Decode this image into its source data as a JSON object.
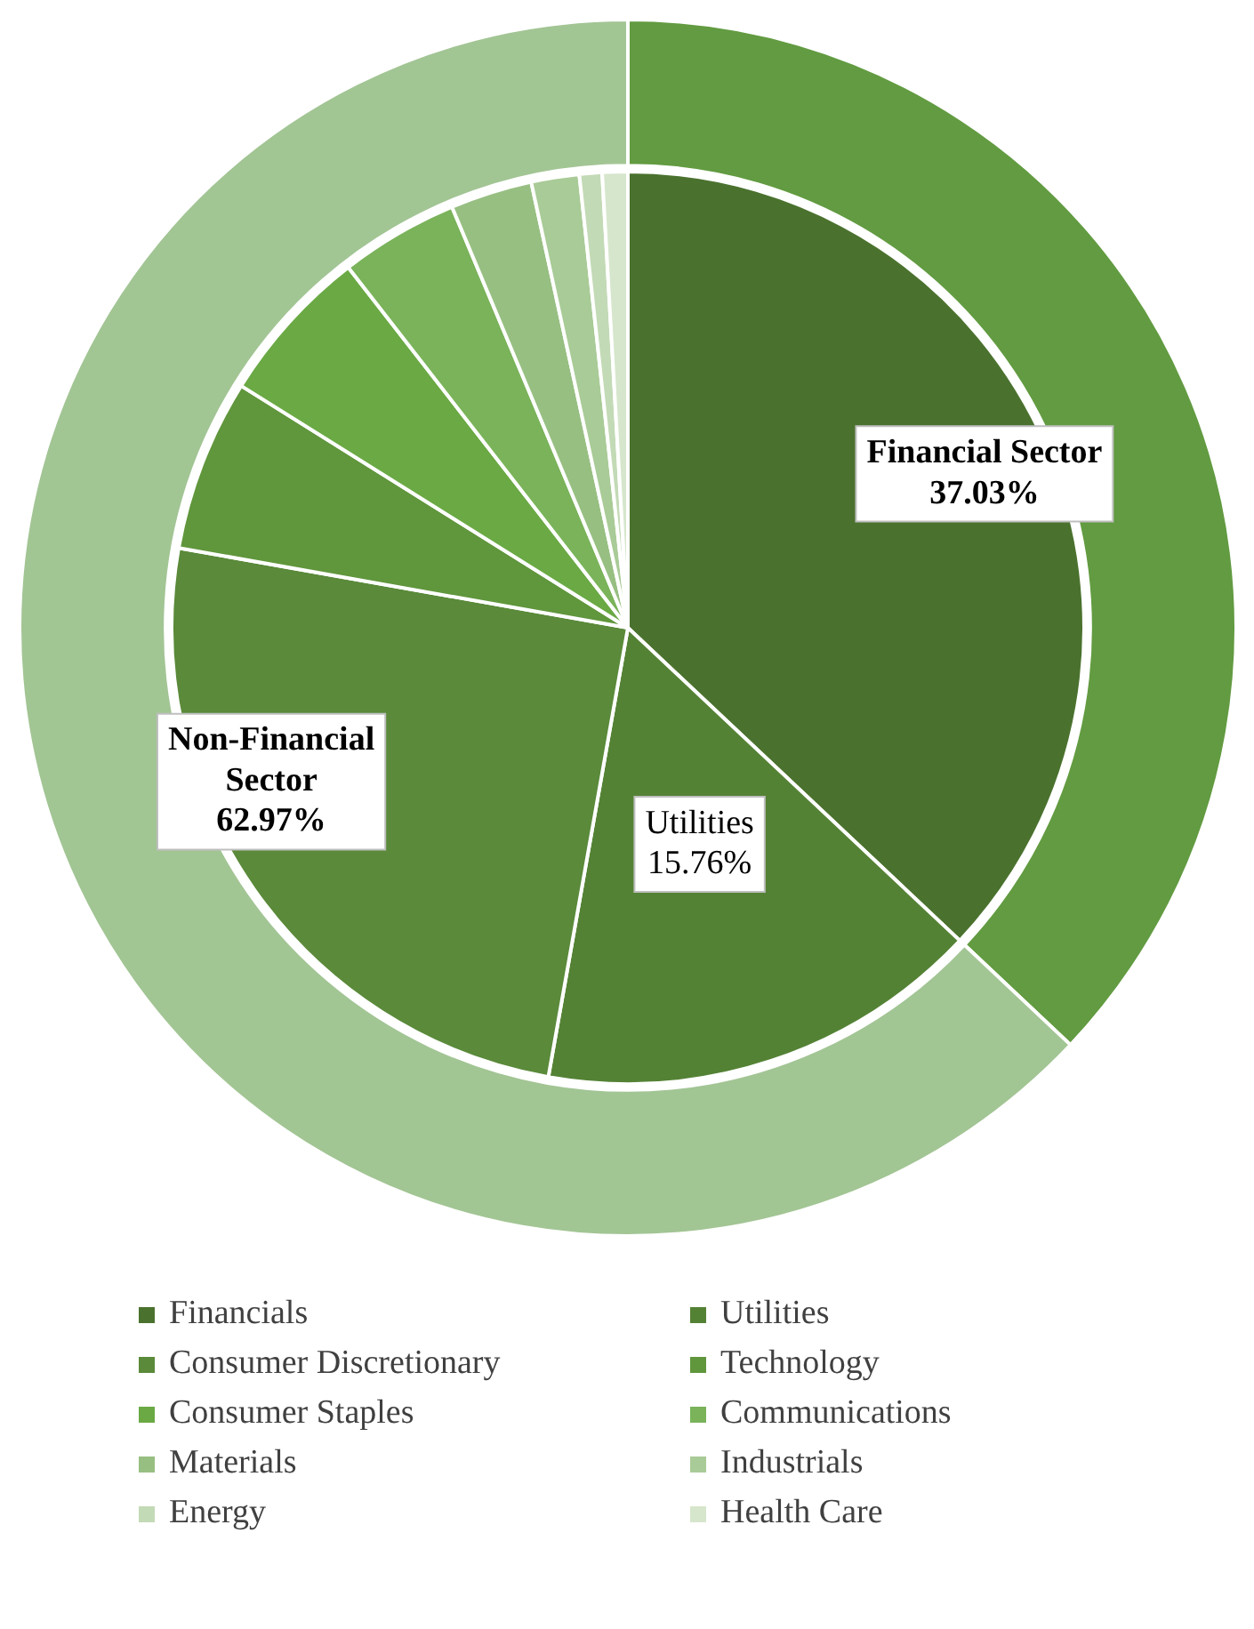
{
  "chart_data": [
    {
      "type": "donut",
      "categories": [
        "Financial Sector",
        "Non-Financial Sector"
      ],
      "values": [
        37.03,
        62.97
      ],
      "colors": [
        "#629b41",
        "#a2c594"
      ],
      "value_labels": [
        "37.03%",
        "62.97%"
      ]
    },
    {
      "type": "pie",
      "categories": [
        "Financials",
        "Utilities",
        "Consumer Discretionary",
        "Technology",
        "Consumer Staples",
        "Communications",
        "Materials",
        "Industrials",
        "Energy",
        "Health Care"
      ],
      "values": [
        37.03,
        15.76,
        25.01,
        6.1,
        5.6,
        4.2,
        2.9,
        1.7,
        0.8,
        0.9
      ],
      "colors": [
        "#4a722e",
        "#548235",
        "#5a8a3a",
        "#60963c",
        "#6aa944",
        "#7ab35a",
        "#97bf82",
        "#a9cb97",
        "#c3dab6",
        "#d6e6cc"
      ],
      "value_labels": [
        null,
        "15.76%",
        null,
        null,
        null,
        null,
        null,
        null,
        null,
        null
      ],
      "legend": "bottom"
    }
  ]
}
